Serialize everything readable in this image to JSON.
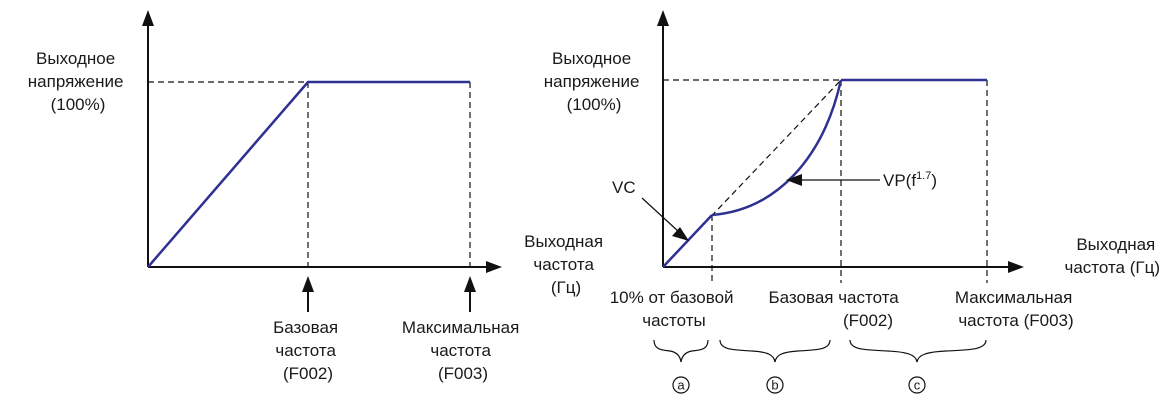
{
  "left_chart": {
    "y_label": [
      "Выходное",
      "напряжение",
      "(100%)"
    ],
    "x_label": [
      "Выходная",
      "частота",
      "(Гц)"
    ],
    "base_freq": [
      "Базовая",
      "частота",
      "(F002)"
    ],
    "max_freq": [
      "Максимальная",
      "частота",
      "(F003)"
    ]
  },
  "right_chart": {
    "y_label": [
      "Выходное",
      "напряжение",
      "(100%)"
    ],
    "x_label": [
      "Выходная",
      "частота (Гц)"
    ],
    "vc_label": "VC",
    "vp_label": "VP(f",
    "vp_exponent": "1.7",
    "vp_close": ")",
    "ten_percent": [
      "10% от базовой",
      "частоты"
    ],
    "base_freq": [
      "Базовая частота",
      "(F002)"
    ],
    "max_freq": [
      "Максимальная",
      "частота (F003)"
    ],
    "regions": [
      "a",
      "b",
      "c"
    ]
  },
  "colors": {
    "curve": "#2e3192",
    "axis": "#111111"
  }
}
